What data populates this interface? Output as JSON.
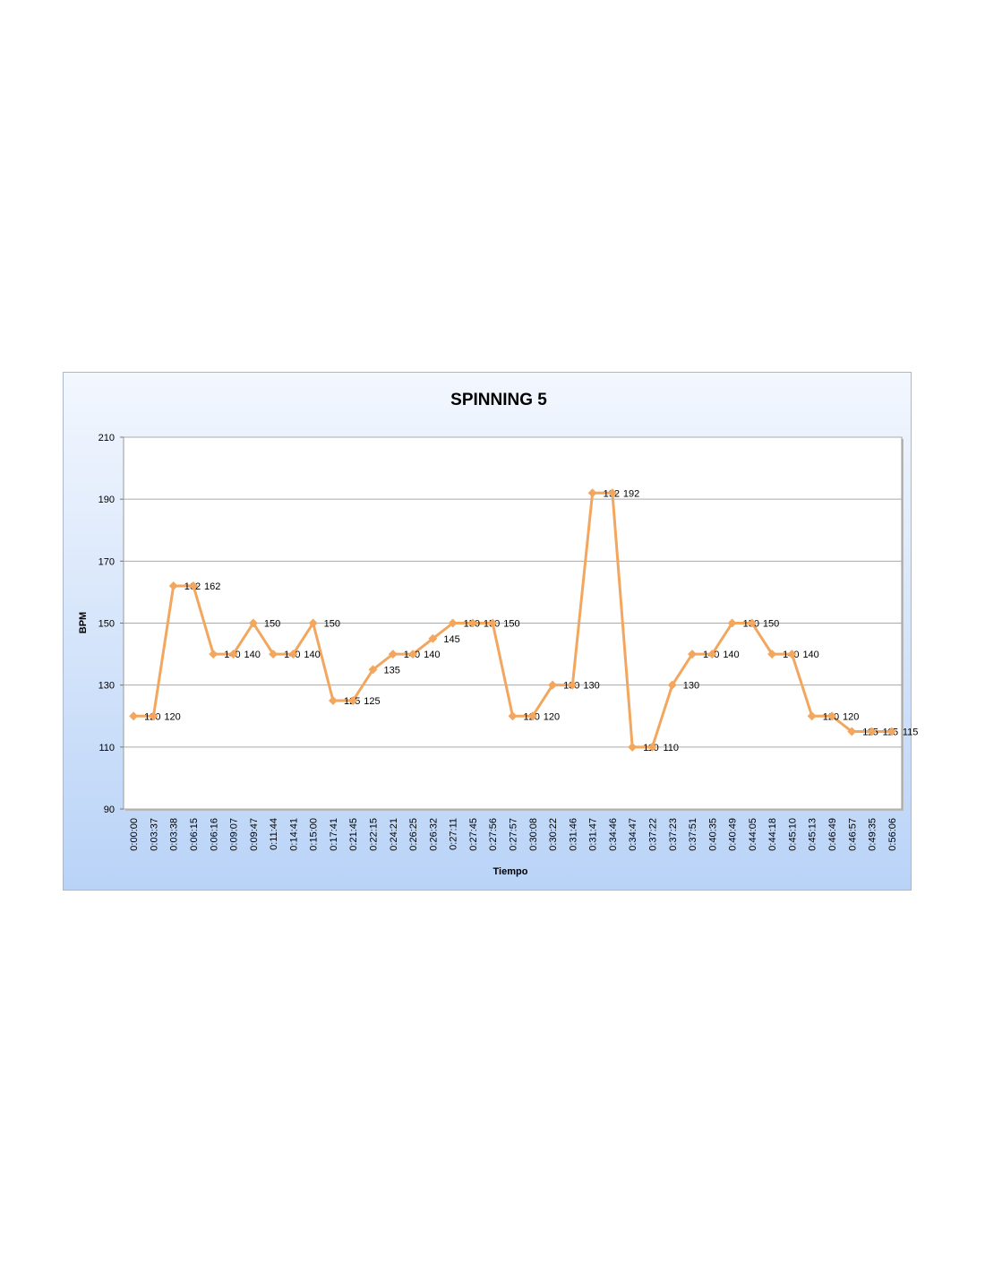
{
  "chart_data": {
    "type": "line",
    "title": "SPINNING 5",
    "x_label": "Tiempo",
    "y_label": "BPM",
    "categories": [
      "0:00:00",
      "0:03:37",
      "0:03:38",
      "0:06:15",
      "0:06:16",
      "0:09:07",
      "0:09:47",
      "0:11:44",
      "0:14:41",
      "0:15:00",
      "0:17:41",
      "0:21:45",
      "0:22:15",
      "0:24:21",
      "0:26:25",
      "0:26:32",
      "0:27:11",
      "0:27:45",
      "0:27:56",
      "0:27:57",
      "0:30:08",
      "0:30:22",
      "0:31:46",
      "0:31:47",
      "0:34:46",
      "0:34:47",
      "0:37:22",
      "0:37:23",
      "0:37:51",
      "0:40:35",
      "0:40:49",
      "0:44:05",
      "0:44:18",
      "0:45:10",
      "0:45:13",
      "0:46:49",
      "0:46:57",
      "0:49:35",
      "0:56:06"
    ],
    "values": [
      120,
      120,
      162,
      162,
      140,
      140,
      150,
      140,
      140,
      150,
      125,
      125,
      135,
      140,
      140,
      145,
      150,
      150,
      150,
      120,
      120,
      130,
      130,
      192,
      192,
      110,
      110,
      130,
      140,
      140,
      150,
      150,
      140,
      140,
      120,
      120,
      115,
      115,
      115
    ],
    "color": "#f2a65e",
    "ylim": [
      90,
      210
    ],
    "yticks": [
      90,
      110,
      130,
      150,
      170,
      190,
      210
    ],
    "grid": true
  }
}
